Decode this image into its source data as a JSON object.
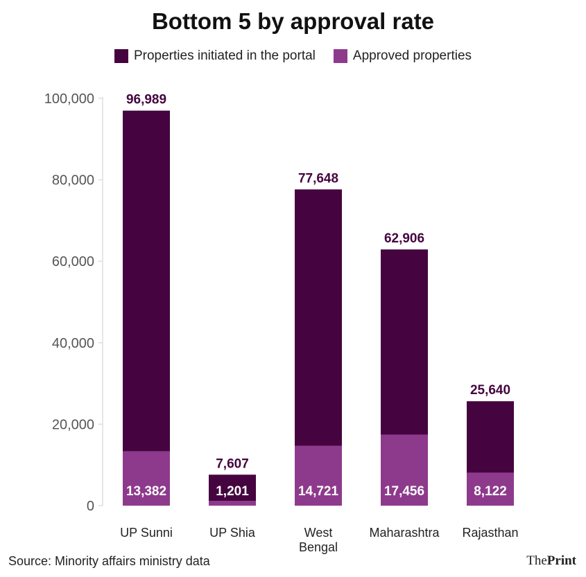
{
  "colors": {
    "initiated": "#45043f",
    "approved": "#8e3a8c",
    "total_label": "#45043f",
    "inner_label": "#ffffff",
    "axis_text": "#555555",
    "axis_line": "#dddddd"
  },
  "chart_data": {
    "type": "bar",
    "title": "Bottom 5 by approval rate",
    "categories": [
      "UP Sunni",
      "UP Shia",
      "West Bengal",
      "Maharashtra",
      "Rajasthan"
    ],
    "category_lines": [
      [
        "UP Sunni"
      ],
      [
        "UP Shia"
      ],
      [
        "West",
        "Bengal"
      ],
      [
        "Maharashtra"
      ],
      [
        "Rajasthan"
      ]
    ],
    "series": [
      {
        "name": "Properties initiated in the portal",
        "values": [
          96989,
          7607,
          77648,
          62906,
          25640
        ]
      },
      {
        "name": "Approved properties",
        "values": [
          13382,
          1201,
          14721,
          17456,
          8122
        ]
      }
    ],
    "value_labels_initiated": [
      "96,989",
      "7,607",
      "77,648",
      "62,906",
      "25,640"
    ],
    "value_labels_approved": [
      "13,382",
      "1,201",
      "14,721",
      "17,456",
      "8,122"
    ],
    "yticks": [
      0,
      20000,
      40000,
      60000,
      80000,
      100000
    ],
    "ytick_labels": [
      "0",
      "20,000",
      "40,000",
      "60,000",
      "80,000",
      "100,000"
    ],
    "ylim": [
      0,
      100000
    ],
    "xlabel": "",
    "ylabel": "",
    "legend": "top-center"
  },
  "footer": {
    "source": "Source: Minority affairs ministry data",
    "brand_prefix": "The",
    "brand_suffix": "Print"
  }
}
